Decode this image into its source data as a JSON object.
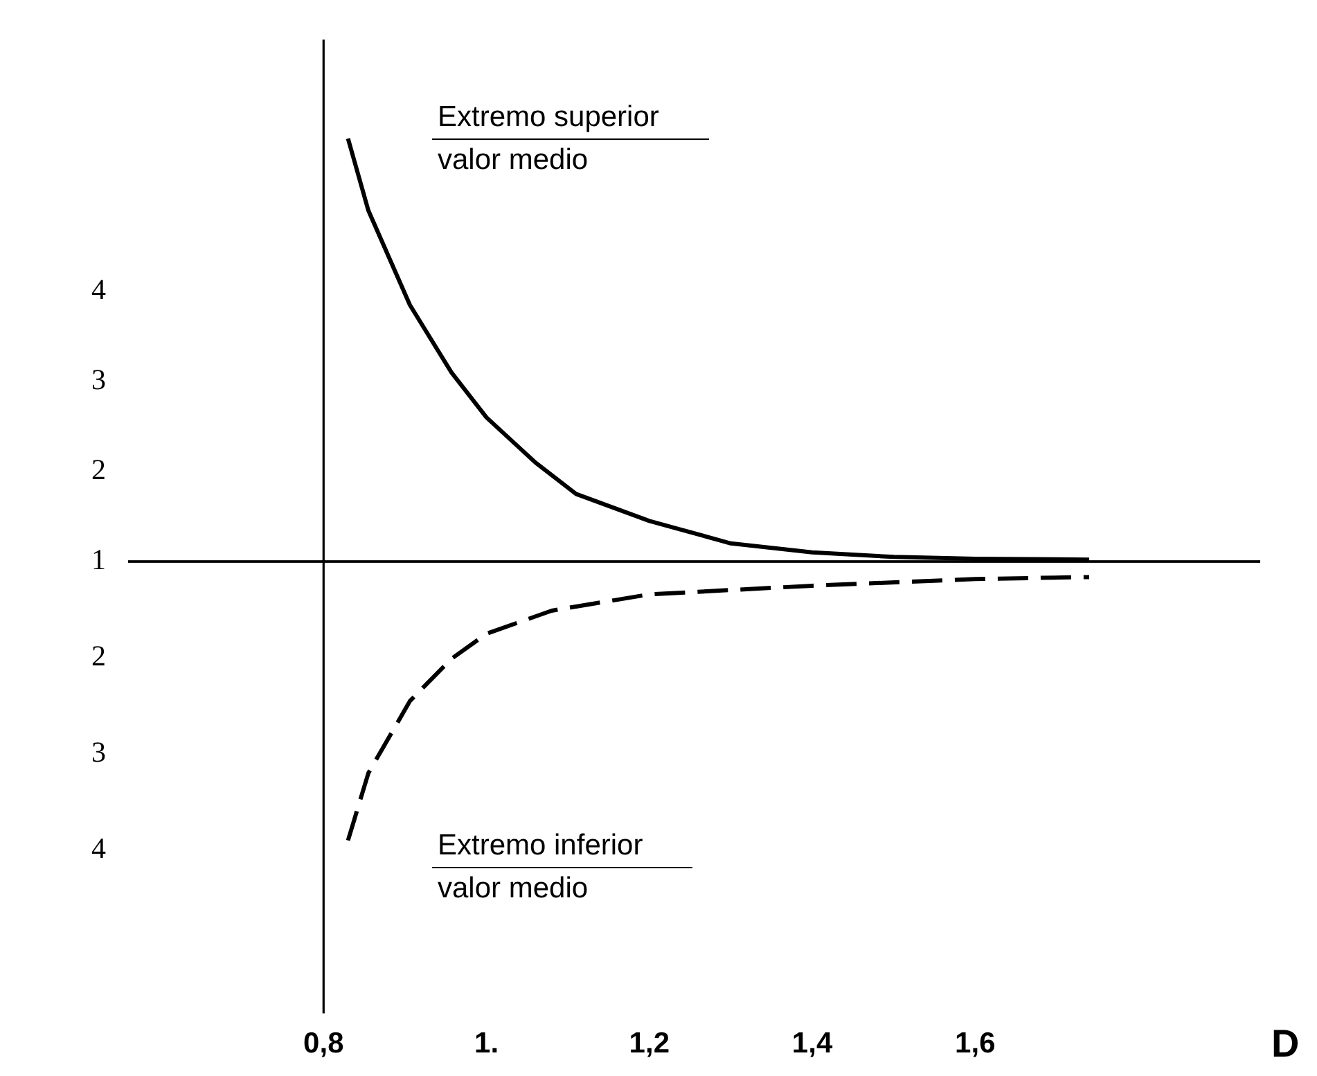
{
  "chart_data": [
    {
      "type": "line",
      "series": [
        {
          "color": "#000000",
          "line_style": "solid",
          "x": [
            0.83,
            0.855,
            0.906,
            0.957,
            1.0,
            1.06,
            1.11,
            1.2,
            1.3,
            1.4,
            1.5,
            1.6,
            1.74
          ],
          "values": [
            5.7,
            4.9,
            3.85,
            3.1,
            2.6,
            2.1,
            1.75,
            1.45,
            1.2,
            1.1,
            1.05,
            1.03,
            1.02
          ]
        }
      ],
      "xlim": [
        0.56,
        1.95
      ],
      "ylim": [
        1,
        6.8
      ],
      "yticks": [
        1,
        2,
        3,
        4
      ],
      "ref_lines": [
        {
          "axis": "x",
          "value": 0.8,
          "color": "#000000"
        }
      ],
      "annotations": [
        "Extremo superior",
        "valor medio"
      ],
      "tick_labels": "y",
      "grid": false,
      "legend": false,
      "marker": "none"
    },
    {
      "type": "line",
      "xlabel": "D",
      "series": [
        {
          "color": "#000000",
          "line_style": "dashed",
          "x": [
            0.83,
            0.855,
            0.906,
            0.957,
            1.0,
            1.08,
            1.2,
            1.4,
            1.6,
            1.74
          ],
          "values": [
            3.9,
            3.2,
            2.45,
            2.01,
            1.75,
            1.51,
            1.34,
            1.25,
            1.18,
            1.16
          ]
        }
      ],
      "xlim": [
        0.56,
        1.95
      ],
      "xticks": [
        {
          "value": 0.8,
          "label": "0,8"
        },
        {
          "value": 1.0,
          "label": "1."
        },
        {
          "value": 1.2,
          "label": "1,2"
        },
        {
          "value": 1.4,
          "label": "1,4"
        },
        {
          "value": 1.6,
          "label": "1,6"
        }
      ],
      "ylim": [
        5.7,
        1
      ],
      "yticks": [
        2,
        3,
        4
      ],
      "ref_lines": [
        {
          "axis": "x",
          "value": 0.8,
          "color": "#000000"
        }
      ],
      "annotations": [
        "Extremo inferior",
        "valor medio"
      ],
      "grid": false,
      "legend": false,
      "marker": "none"
    }
  ]
}
